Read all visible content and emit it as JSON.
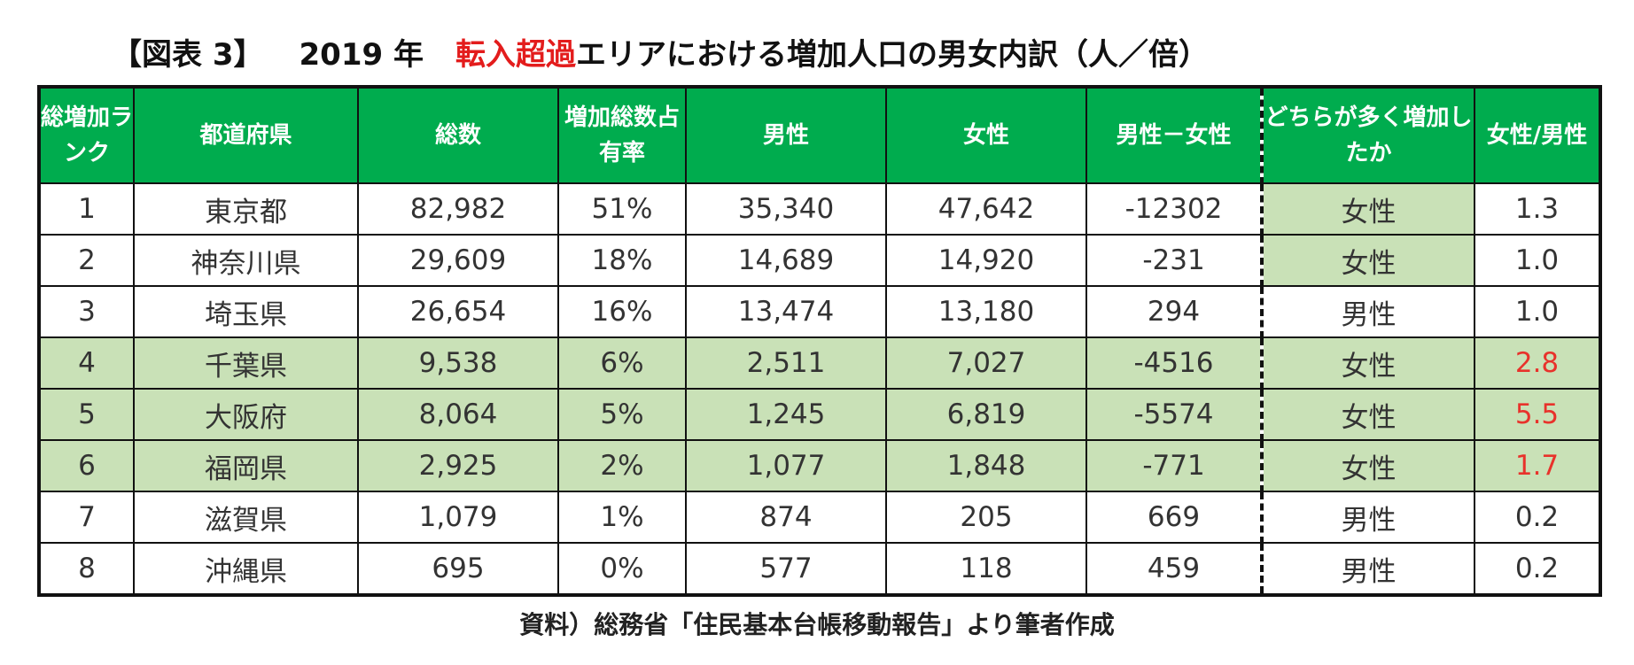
{
  "title": {
    "label": "【図表 3】",
    "year": "2019 年",
    "highlight": "転入超過",
    "rest": "エリアにおける増加人口の男女内訳（人／倍）"
  },
  "table": {
    "headers": [
      "総増加ランク",
      "都道府県",
      "総数",
      "増加総数占有率",
      "男性",
      "女性",
      "男性－女性",
      "どちらが多く増加したか",
      "女性/男性"
    ],
    "rows": [
      {
        "rank": "1",
        "pref": "東京都",
        "total": "82,982",
        "share": "51%",
        "male": "35,340",
        "female": "47,642",
        "diff": "-12302",
        "which": "女性",
        "ratio": "1.3"
      },
      {
        "rank": "2",
        "pref": "神奈川県",
        "total": "29,609",
        "share": "18%",
        "male": "14,689",
        "female": "14,920",
        "diff": "-231",
        "which": "女性",
        "ratio": "1.0"
      },
      {
        "rank": "3",
        "pref": "埼玉県",
        "total": "26,654",
        "share": "16%",
        "male": "13,474",
        "female": "13,180",
        "diff": "294",
        "which": "男性",
        "ratio": "1.0"
      },
      {
        "rank": "4",
        "pref": "千葉県",
        "total": "9,538",
        "share": "6%",
        "male": "2,511",
        "female": "7,027",
        "diff": "-4516",
        "which": "女性",
        "ratio": "2.8"
      },
      {
        "rank": "5",
        "pref": "大阪府",
        "total": "8,064",
        "share": "5%",
        "male": "1,245",
        "female": "6,819",
        "diff": "-5574",
        "which": "女性",
        "ratio": "5.5"
      },
      {
        "rank": "6",
        "pref": "福岡県",
        "total": "2,925",
        "share": "2%",
        "male": "1,077",
        "female": "1,848",
        "diff": "-771",
        "which": "女性",
        "ratio": "1.7"
      },
      {
        "rank": "7",
        "pref": "滋賀県",
        "total": "1,079",
        "share": "1%",
        "male": "874",
        "female": "205",
        "diff": "669",
        "which": "男性",
        "ratio": "0.2"
      },
      {
        "rank": "8",
        "pref": "沖縄県",
        "total": "695",
        "share": "0%",
        "male": "577",
        "female": "118",
        "diff": "459",
        "which": "男性",
        "ratio": "0.2"
      }
    ]
  },
  "source": "資料）総務省「住民基本台帳移動報告」より筆者作成",
  "colors": {
    "header_bg": "#00ac4e",
    "highlight_bg": "#c9e1b7",
    "accent_red": "#e31c1c"
  }
}
